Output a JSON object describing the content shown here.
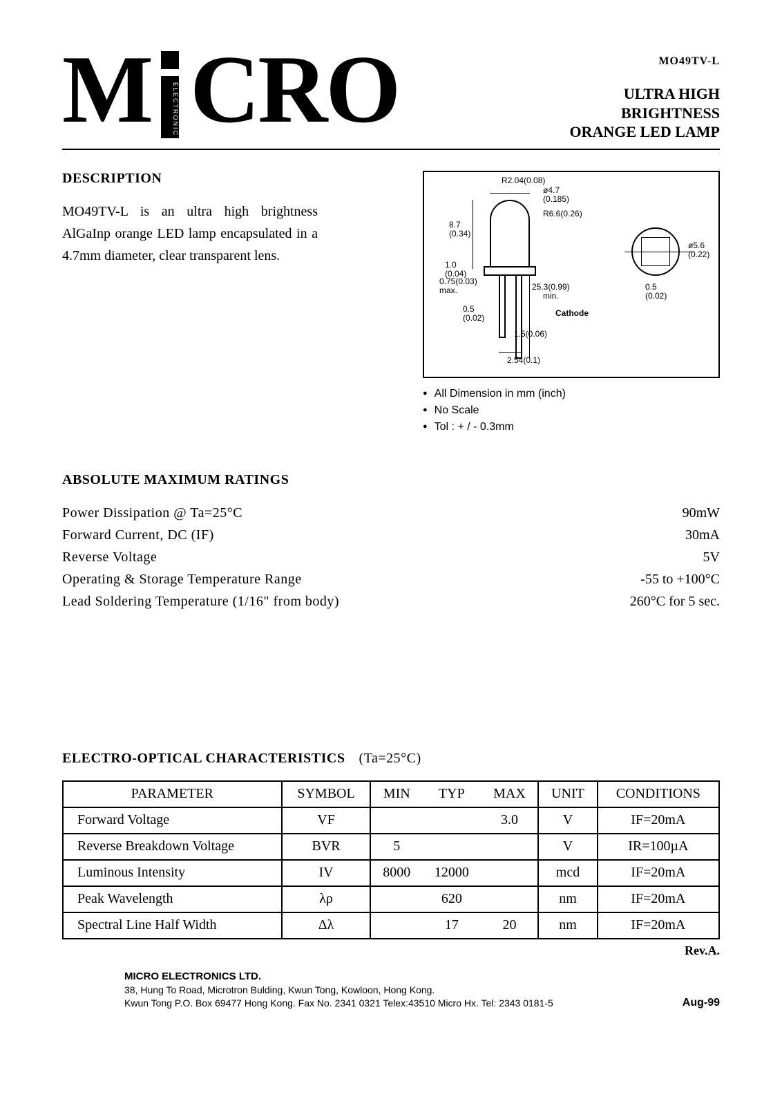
{
  "header": {
    "part_number_small": "MO49TV-L",
    "product_line1": "ULTRA HIGH",
    "product_line2": "BRIGHTNESS",
    "product_line3": "ORANGE LED LAMP",
    "logo_vertical_text": "ELECTRONIC"
  },
  "description": {
    "heading": "DESCRIPTION",
    "text": "MO49TV-L is an ultra high brightness AlGaInp orange LED lamp encapsulated in a 4.7mm diameter, clear transparent lens."
  },
  "diagram": {
    "labels": {
      "r204": "R2.04(0.08)",
      "dia47": "ø4.7\n(0.185)",
      "r66": "R6.6(0.26)",
      "h87": "8.7\n(0.34)",
      "h10": "1.0\n(0.04)",
      "w075": "0.75(0.03)\nmax.",
      "lead253": "25.3(0.99)\nmin.",
      "lead05": "0.5\n(0.02)",
      "cathode": "Cathode",
      "pitch15": "1.5(0.06)",
      "pitch254": "2.54(0.1)",
      "topdia56": "ø5.6\n(0.22)",
      "top05": "0.5\n(0.02)"
    },
    "notes": [
      "All Dimension in mm (inch)",
      "No Scale",
      "Tol :  + / -  0.3mm"
    ]
  },
  "ratings": {
    "heading": "ABSOLUTE MAXIMUM RATINGS",
    "rows": [
      {
        "label": "Power Dissipation @ Ta=25°C",
        "value": "90mW"
      },
      {
        "label": "Forward Current, DC (IF)",
        "value": "30mA"
      },
      {
        "label": "Reverse Voltage",
        "value": "5V"
      },
      {
        "label": "Operating & Storage Temperature Range",
        "value": "-55 to +100°C"
      },
      {
        "label": "Lead Soldering Temperature (1/16\" from body)",
        "value": "260°C for 5 sec."
      }
    ]
  },
  "eoc": {
    "heading": "ELECTRO-OPTICAL CHARACTERISTICS",
    "condition_header": "(Ta=25°C)",
    "columns": [
      "PARAMETER",
      "SYMBOL",
      "MIN",
      "TYP",
      "MAX",
      "UNIT",
      "CONDITIONS"
    ],
    "rows": [
      {
        "parameter": "Forward Voltage",
        "symbol": "VF",
        "min": "",
        "typ": "",
        "max": "3.0",
        "unit": "V",
        "cond": "IF=20mA"
      },
      {
        "parameter": "Reverse Breakdown Voltage",
        "symbol": "BVR",
        "min": "5",
        "typ": "",
        "max": "",
        "unit": "V",
        "cond": "IR=100µA"
      },
      {
        "parameter": "Luminous Intensity",
        "symbol": "IV",
        "min": "8000",
        "typ": "12000",
        "max": "",
        "unit": "mcd",
        "cond": "IF=20mA"
      },
      {
        "parameter": "Peak Wavelength",
        "symbol": "λρ",
        "min": "",
        "typ": "620",
        "max": "",
        "unit": "nm",
        "cond": "IF=20mA"
      },
      {
        "parameter": "Spectral Line Half Width",
        "symbol": "Δλ",
        "min": "",
        "typ": "17",
        "max": "20",
        "unit": "nm",
        "cond": "IF=20mA"
      }
    ],
    "revision": "Rev.A."
  },
  "footer": {
    "company": "MICRO ELECTRONICS LTD.",
    "addr1": "38, Hung To Road, Microtron Bulding, Kwun Tong, Kowloon, Hong Kong.",
    "addr2": "Kwun Tong P.O. Box 69477 Hong Kong. Fax No. 2341 0321   Telex:43510 Micro Hx.   Tel: 2343 0181-5",
    "date": "Aug-99"
  },
  "style": {
    "text_color": "#000000",
    "background_color": "#ffffff",
    "border_color": "#000000",
    "body_font": "Times New Roman",
    "sans_font": "Arial",
    "h2_fontsize": 20,
    "body_fontsize": 20,
    "diagram_fontsize": 12
  }
}
